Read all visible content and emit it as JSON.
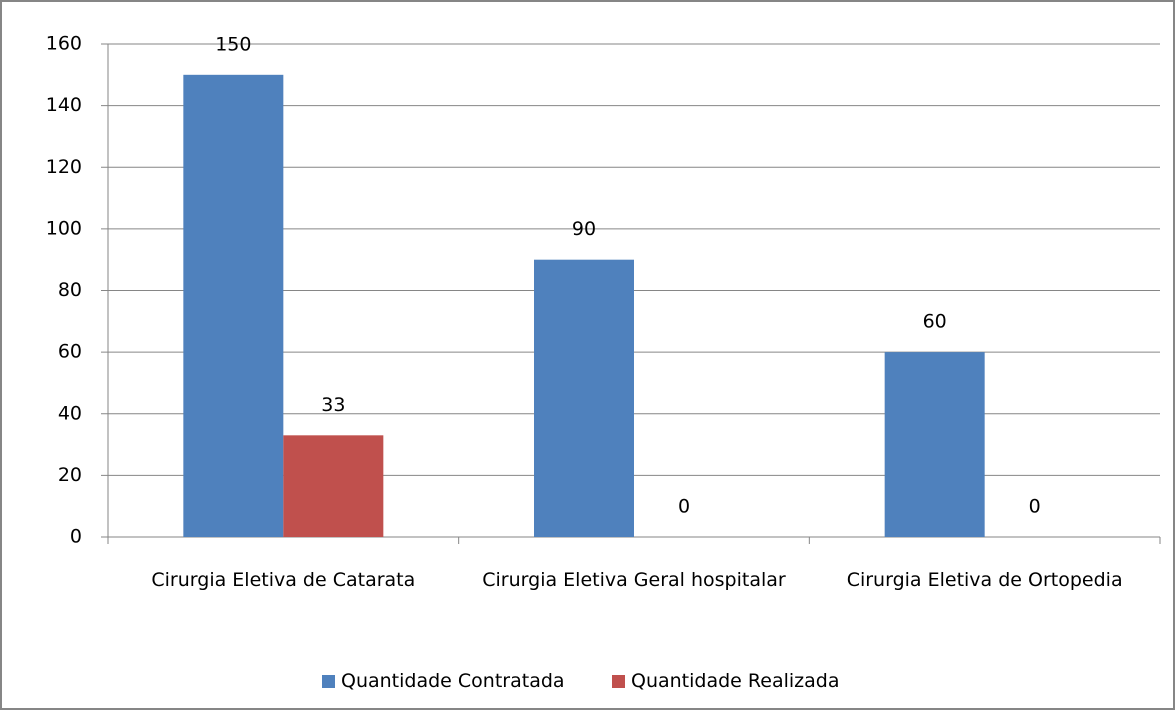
{
  "chart_data": {
    "type": "bar",
    "categories": [
      "Cirurgia Eletiva de Catarata",
      "Cirurgia Eletiva Geral hospitalar",
      "Cirurgia Eletiva de Ortopedia"
    ],
    "series": [
      {
        "name": "Quantidade Contratada",
        "color": "#4f81bd",
        "values": [
          150,
          90,
          60
        ]
      },
      {
        "name": "Quantidade Realizada",
        "color": "#c0504d",
        "values": [
          33,
          0,
          0
        ]
      }
    ],
    "ylim": [
      0,
      160
    ],
    "yticks": [
      0,
      20,
      40,
      60,
      80,
      100,
      120,
      140,
      160
    ],
    "grid": true,
    "legend": "bottom"
  }
}
